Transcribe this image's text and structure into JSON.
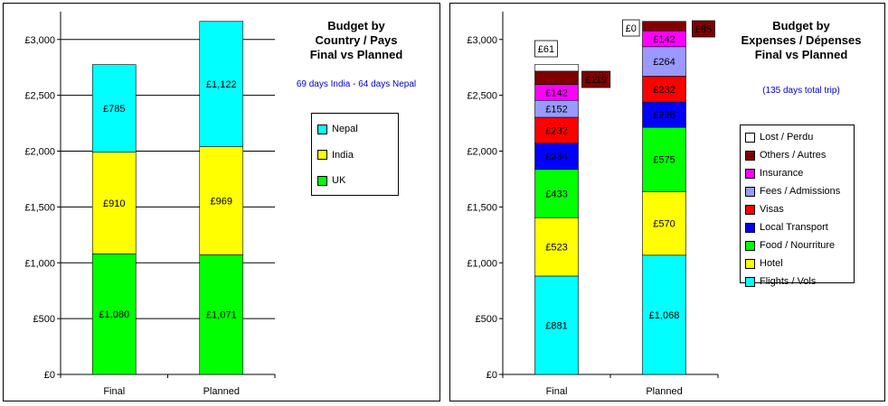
{
  "chart_data": [
    {
      "type": "bar",
      "stacked": true,
      "title": "Budget by\nCountry / Pays\nFinal vs Planned",
      "subtitle": "69 days India - 64 days Nepal",
      "categories": [
        "Final",
        "Planned"
      ],
      "ylim": [
        0,
        3250
      ],
      "yticks": [
        0,
        500,
        1000,
        1500,
        2000,
        2500,
        3000
      ],
      "ytick_labels": [
        "£0",
        "£500",
        "£1,000",
        "£1,500",
        "£2,000",
        "£2,500",
        "£3,000"
      ],
      "grid": true,
      "legend_position": "right",
      "series": [
        {
          "name": "UK",
          "color": "#00ff00",
          "values": [
            1080,
            1071
          ],
          "labels": [
            "£1,080",
            "£1,071"
          ]
        },
        {
          "name": "India",
          "color": "#ffff00",
          "values": [
            910,
            969
          ],
          "labels": [
            "£910",
            "£969"
          ]
        },
        {
          "name": "Nepal",
          "color": "#00ffff",
          "values": [
            785,
            1122
          ],
          "labels": [
            "£785",
            "£1,122"
          ]
        }
      ],
      "legend_order": [
        "Nepal",
        "India",
        "UK"
      ]
    },
    {
      "type": "bar",
      "stacked": true,
      "title": "Budget by\nExpenses / Dépenses\nFinal vs Planned",
      "subtitle": "(135 days total trip)",
      "categories": [
        "Final",
        "Planned"
      ],
      "ylim": [
        0,
        3250
      ],
      "yticks": [
        0,
        500,
        1000,
        1500,
        2000,
        2500,
        3000
      ],
      "ytick_labels": [
        "£0",
        "£500",
        "£1,000",
        "£1,500",
        "£2,000",
        "£2,500",
        "£3,000"
      ],
      "grid": false,
      "legend_position": "right",
      "series": [
        {
          "name": "Flights / Vols",
          "color": "#00ffff",
          "values": [
            881,
            1068
          ],
          "labels": [
            "£881",
            "£1,068"
          ]
        },
        {
          "name": "Hotel",
          "color": "#ffff00",
          "values": [
            523,
            570
          ],
          "labels": [
            "£523",
            "£570"
          ]
        },
        {
          "name": "Food / Nourriture",
          "color": "#00ff00",
          "values": [
            433,
            575
          ],
          "labels": [
            "£433",
            "£575"
          ]
        },
        {
          "name": "Local Transport",
          "color": "#0000ff",
          "values": [
            234,
            226
          ],
          "labels": [
            "£234",
            "£226"
          ]
        },
        {
          "name": "Visas",
          "color": "#ff0000",
          "values": [
            232,
            232
          ],
          "labels": [
            "£232",
            "£232"
          ]
        },
        {
          "name": "Fees / Admissions",
          "color": "#9999ff",
          "values": [
            152,
            264
          ],
          "labels": [
            "£152",
            "£264"
          ]
        },
        {
          "name": "Insurance",
          "color": "#ff00ff",
          "values": [
            142,
            142
          ],
          "labels": [
            "£142",
            "£142"
          ]
        },
        {
          "name": "Others / Autres",
          "color": "#800000",
          "values": [
            119,
            85
          ],
          "labels": [
            "£119",
            "£85"
          ]
        },
        {
          "name": "Lost / Perdu",
          "color": "#ffffff",
          "values": [
            61,
            0
          ],
          "labels": [
            "£61",
            "£0"
          ]
        }
      ],
      "legend_order": [
        "Lost / Perdu",
        "Others / Autres",
        "Insurance",
        "Fees / Admissions",
        "Visas",
        "Local Transport",
        "Food / Nourriture",
        "Hotel",
        "Flights / Vols"
      ]
    }
  ]
}
